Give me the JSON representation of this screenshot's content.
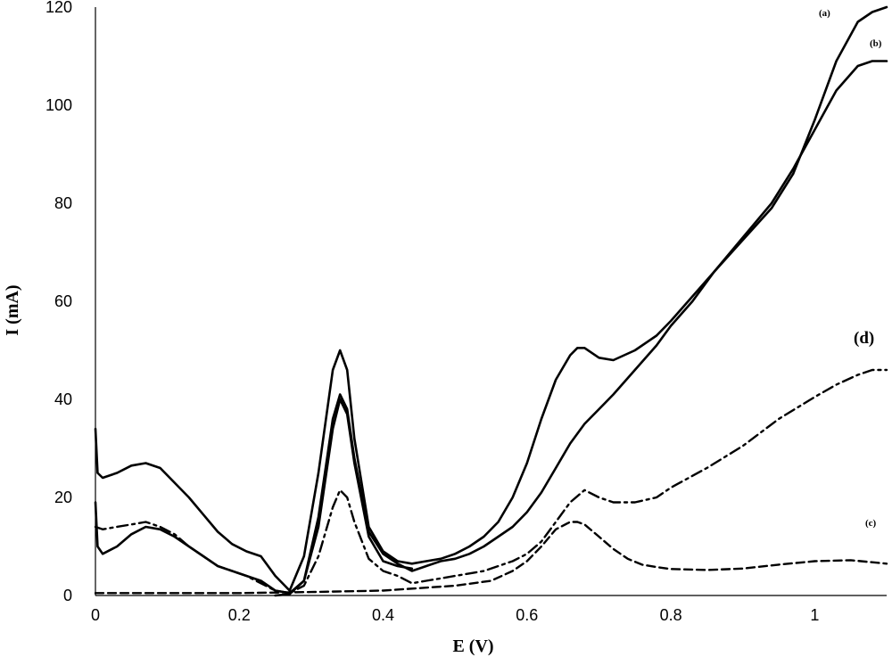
{
  "chart_data": {
    "type": "line",
    "xlabel": "E (V)",
    "ylabel": "I (mA)",
    "xlim": [
      0,
      1.1
    ],
    "ylim": [
      0,
      120
    ],
    "x_ticks": [
      "0",
      "0.2",
      "0.4",
      "0.6",
      "0.8",
      "1"
    ],
    "y_ticks": [
      "0",
      "20",
      "40",
      "60",
      "80",
      "100",
      "120"
    ],
    "grid": false,
    "series": [
      {
        "name": "(a)",
        "style": "solid-thick",
        "x": [
          0,
          0.003,
          0.01,
          0.03,
          0.05,
          0.07,
          0.09,
          0.11,
          0.13,
          0.15,
          0.17,
          0.19,
          0.21,
          0.23,
          0.25,
          0.27,
          0.29,
          0.31,
          0.33,
          0.34,
          0.35,
          0.36,
          0.38,
          0.4,
          0.42,
          0.44,
          0.46,
          0.48,
          0.5,
          0.52,
          0.54,
          0.56,
          0.58,
          0.6,
          0.62,
          0.64,
          0.66,
          0.67,
          0.68,
          0.7,
          0.72,
          0.75,
          0.78,
          0.8,
          0.83,
          0.86,
          0.9,
          0.94,
          0.97,
          1.0,
          1.03,
          1.06,
          1.08,
          1.1
        ],
        "y": [
          34,
          25,
          24,
          25,
          26.5,
          27,
          26,
          23,
          20,
          16.5,
          13,
          10.5,
          9,
          8,
          4,
          1,
          8,
          25,
          46,
          50,
          46,
          32,
          14,
          9,
          7,
          6.5,
          7,
          7.5,
          8.5,
          10,
          12,
          15,
          20,
          27,
          36,
          44,
          49,
          50.5,
          50.5,
          48.5,
          48,
          50,
          53,
          56,
          61,
          66,
          72.5,
          79,
          86,
          97,
          109,
          117,
          119,
          120
        ]
      },
      {
        "name": "(b)",
        "style": "solid-thick",
        "x": [
          0,
          0.003,
          0.01,
          0.03,
          0.05,
          0.07,
          0.09,
          0.11,
          0.13,
          0.15,
          0.17,
          0.19,
          0.21,
          0.23,
          0.25,
          0.27,
          0.29,
          0.31,
          0.33,
          0.34,
          0.35,
          0.36,
          0.38,
          0.4,
          0.42,
          0.44,
          0.46,
          0.48,
          0.5,
          0.52,
          0.54,
          0.56,
          0.58,
          0.6,
          0.62,
          0.64,
          0.66,
          0.68,
          0.7,
          0.72,
          0.75,
          0.78,
          0.8,
          0.83,
          0.86,
          0.9,
          0.94,
          0.97,
          1.0,
          1.03,
          1.06,
          1.08,
          1.1
        ],
        "y": [
          19,
          10,
          8.5,
          10,
          12.5,
          14,
          13.5,
          12,
          10,
          8,
          6,
          5,
          4,
          3,
          1,
          0.5,
          3,
          16,
          36,
          41,
          38,
          28,
          13,
          8.5,
          6.5,
          5,
          6,
          7,
          7.5,
          8.5,
          10,
          12,
          14,
          17,
          21,
          26,
          31,
          35,
          38,
          41,
          46,
          51,
          55,
          60,
          66,
          73,
          80,
          87,
          95,
          103,
          108,
          109,
          109
        ]
      },
      {
        "name": "",
        "style": "solid-thick",
        "x": [
          0.25,
          0.27,
          0.29,
          0.31,
          0.33,
          0.34,
          0.35,
          0.36,
          0.38,
          0.4,
          0.42,
          0.44
        ],
        "y": [
          0,
          0.3,
          3,
          14,
          34,
          40,
          37,
          27,
          12,
          7,
          6,
          5.5
        ]
      },
      {
        "name": "(c)",
        "style": "dashed",
        "x": [
          0,
          0.05,
          0.1,
          0.2,
          0.3,
          0.4,
          0.5,
          0.55,
          0.58,
          0.6,
          0.62,
          0.64,
          0.66,
          0.67,
          0.68,
          0.7,
          0.72,
          0.74,
          0.76,
          0.78,
          0.8,
          0.85,
          0.9,
          0.95,
          1.0,
          1.05,
          1.1
        ],
        "y": [
          0.5,
          0.5,
          0.5,
          0.5,
          0.7,
          1,
          2,
          3,
          5,
          7,
          10,
          13.5,
          15,
          15,
          14.5,
          12,
          9.5,
          7.5,
          6.3,
          5.8,
          5.4,
          5.2,
          5.5,
          6.3,
          7,
          7.2,
          6.5
        ]
      },
      {
        "name": "(d)",
        "style": "dash-dot",
        "x": [
          0,
          0.01,
          0.03,
          0.05,
          0.07,
          0.09,
          0.11,
          0.13,
          0.15,
          0.17,
          0.19,
          0.21,
          0.23,
          0.25,
          0.27,
          0.29,
          0.31,
          0.33,
          0.34,
          0.35,
          0.36,
          0.38,
          0.4,
          0.42,
          0.44,
          0.46,
          0.48,
          0.5,
          0.52,
          0.54,
          0.56,
          0.58,
          0.6,
          0.62,
          0.64,
          0.66,
          0.68,
          0.7,
          0.72,
          0.75,
          0.78,
          0.8,
          0.85,
          0.9,
          0.95,
          1.0,
          1.03,
          1.06,
          1.08,
          1.1
        ],
        "y": [
          14,
          13.5,
          14,
          14.5,
          15,
          14,
          12.5,
          10,
          8,
          6,
          5,
          4,
          2.5,
          1,
          0.5,
          2,
          8,
          18,
          21.5,
          20,
          15,
          7.5,
          5,
          4,
          2.5,
          3,
          3.5,
          4,
          4.5,
          5,
          6,
          7,
          8.5,
          11,
          15,
          19,
          21.5,
          20,
          19,
          19,
          20,
          22,
          26,
          30.5,
          36,
          40.5,
          43,
          45,
          46,
          46
        ]
      }
    ],
    "annotations": [
      "(a)",
      "(b)",
      "(c)",
      "(d)"
    ]
  }
}
